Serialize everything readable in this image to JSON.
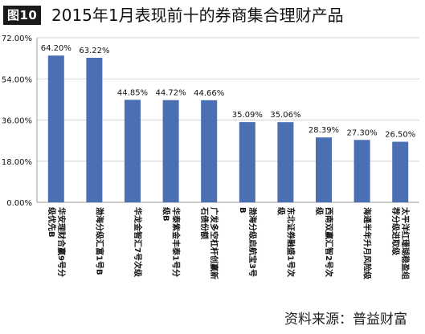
{
  "figure": {
    "badge": "图10",
    "title": "2015年1月表现前十的券商集合理财产品"
  },
  "source_note": "资料来源：普益财富",
  "colors": {
    "bar": "#4a6fb3",
    "grid": "#d3d3d3",
    "axis": "#9a9a9a",
    "text": "#111111"
  },
  "chart_data": {
    "type": "bar",
    "title": "2015年1月表现前十的券商集合理财产品",
    "xlabel": "",
    "ylabel": "",
    "ylim": [
      0,
      72
    ],
    "yticks": [
      "0.00%",
      "18.00%",
      "36.00%",
      "54.00%",
      "72.00%"
    ],
    "ytick_values": [
      0,
      18,
      36,
      54,
      72
    ],
    "grid": true,
    "legend": "none",
    "categories": [
      "华安理财合赢9号分级优先B",
      "渤海分级汇富1号B",
      "华龙金智汇7号次级",
      "华泰紫金丰泰1号分级B",
      "广发多空杠杆创赢新石债份额",
      "渤海分级启航宝3号B",
      "东北证券融盛1号次级",
      "西南双赢汇智2号次级",
      "海通半年升月风险级",
      "太平洋红珊瑚稳盈组荐分级进取级"
    ],
    "values": [
      64.2,
      63.22,
      44.85,
      44.72,
      44.66,
      35.09,
      35.06,
      28.39,
      27.3,
      26.5
    ],
    "data_labels": [
      "64.20%",
      "63.22%",
      "44.85%",
      "44.72%",
      "44.66%",
      "35.09%",
      "35.06%",
      "28.39%",
      "27.30%",
      "26.50%"
    ]
  }
}
